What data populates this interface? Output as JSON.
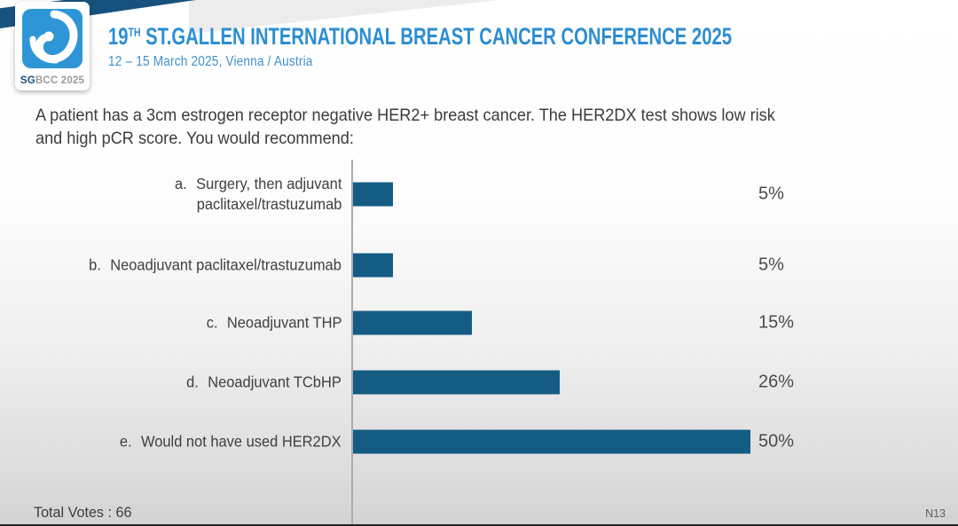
{
  "colors": {
    "accent_blue": "#2b8ed3",
    "navy_band": "#17527e",
    "logo_blue": "#2e96d6",
    "bar_color": "#155c85",
    "text_dark": "#3c3c3c"
  },
  "header": {
    "logo": {
      "sg": "SG",
      "rest": "BCC 2025"
    },
    "title_num": "19",
    "title_sup": "TH",
    "title_rest": " ST.GALLEN INTERNATIONAL BREAST CANCER CONFERENCE 2025",
    "subtitle": "12 – 15 March 2025, Vienna / Austria"
  },
  "question_lines": [
    "A patient has a 3cm estrogen receptor negative HER2+ breast cancer. The HER2DX test shows low risk",
    "and high pCR score. You would recommend:"
  ],
  "chart_data": {
    "type": "bar",
    "orientation": "horizontal",
    "title": "A patient has a 3cm estrogen receptor negative HER2+ breast cancer. The HER2DX test shows low risk and high pCR score. You would recommend:",
    "categories": [
      "a. Surgery, then adjuvant paclitaxel/trastuzumab",
      "b. Neoadjuvant paclitaxel/trastuzumab",
      "c. Neoadjuvant THP",
      "d. Neoadjuvant TCbHP",
      "e. Would not have used HER2DX"
    ],
    "values": [
      5,
      5,
      15,
      26,
      50
    ],
    "value_unit": "%",
    "xlim": [
      0,
      50
    ],
    "grid": false,
    "legend": false,
    "bar_color": "#155c85",
    "bars": [
      {
        "letter": "a.",
        "label_lines": [
          "Surgery, then adjuvant",
          "paclitaxel/trastuzumab"
        ],
        "value": 5,
        "pct_label": "5%"
      },
      {
        "letter": "b.",
        "label_lines": [
          "Neoadjuvant paclitaxel/trastuzumab"
        ],
        "value": 5,
        "pct_label": "5%"
      },
      {
        "letter": "c.",
        "label_lines": [
          "Neoadjuvant THP"
        ],
        "value": 15,
        "pct_label": "15%"
      },
      {
        "letter": "d.",
        "label_lines": [
          "Neoadjuvant TCbHP"
        ],
        "value": 26,
        "pct_label": "26%"
      },
      {
        "letter": "e.",
        "label_lines": [
          "Would not have used HER2DX"
        ],
        "value": 50,
        "pct_label": "50%"
      }
    ]
  },
  "footer": {
    "total_votes_label": "Total Votes : 66",
    "slide_code": "N13"
  }
}
